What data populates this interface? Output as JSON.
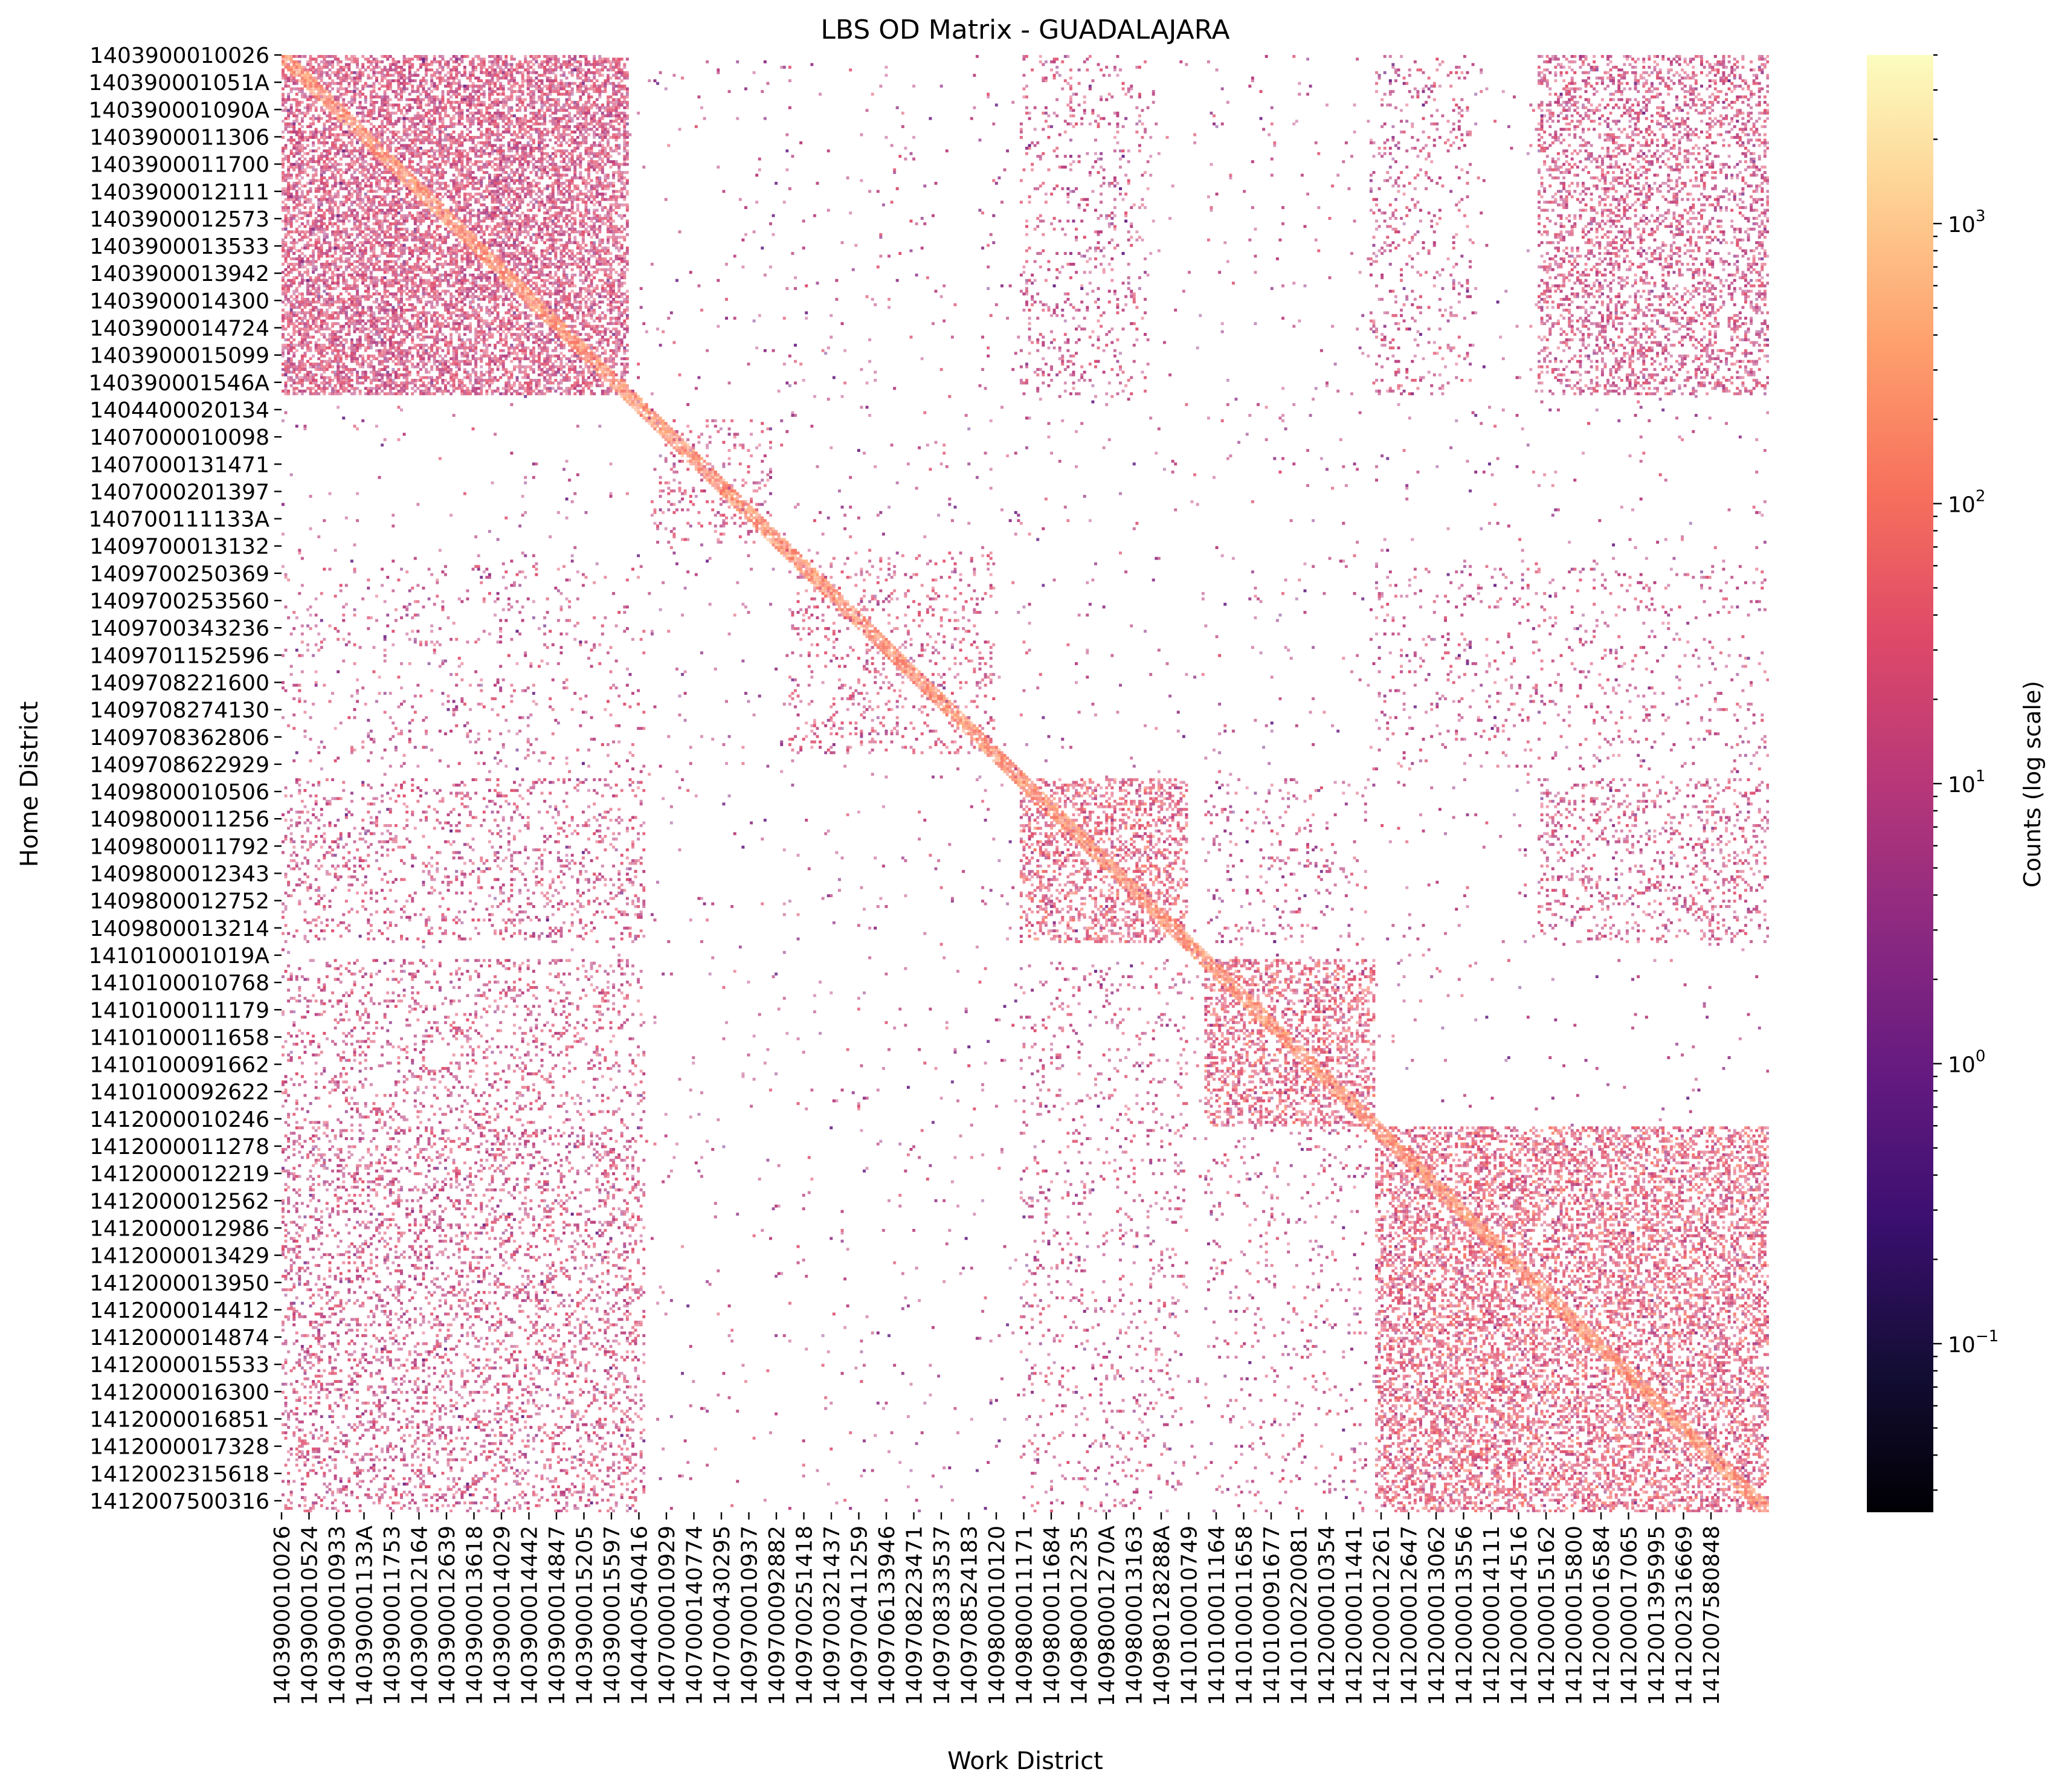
{
  "chart_data": {
    "type": "heatmap",
    "title": "LBS OD Matrix - GUADALAJARA",
    "xlabel": "Work District",
    "ylabel": "Home District",
    "colorbar_label": "Counts (log scale)",
    "colormap": "magma",
    "scale": "log",
    "colorbar_range": [
      0.025,
      4000
    ],
    "colorbar_ticks": [
      {
        "base": "10",
        "exp": "3",
        "value": 1000
      },
      {
        "base": "10",
        "exp": "2",
        "value": 100
      },
      {
        "base": "10",
        "exp": "1",
        "value": 10
      },
      {
        "base": "10",
        "exp": "0",
        "value": 1
      },
      {
        "base": "10",
        "exp": "−1",
        "value": 0.1
      }
    ],
    "grid": false,
    "row_tick_labels": [
      "1403900010026",
      "140390001051A",
      "140390001090A",
      "1403900011306",
      "1403900011700",
      "1403900012111",
      "1403900012573",
      "1403900013533",
      "1403900013942",
      "1403900014300",
      "1403900014724",
      "1403900015099",
      "140390001546A",
      "1404400020134",
      "1407000010098",
      "1407000131471",
      "1407000201397",
      "140700111133A",
      "1409700013132",
      "1409700250369",
      "1409700253560",
      "1409700343236",
      "1409701152596",
      "1409708221600",
      "1409708274130",
      "1409708362806",
      "1409708622929",
      "1409800010506",
      "1409800011256",
      "1409800011792",
      "1409800012343",
      "1409800012752",
      "1409800013214",
      "141010001019A",
      "1410100010768",
      "1410100011179",
      "1410100011658",
      "1410100091662",
      "1410100092622",
      "1412000010246",
      "1412000011278",
      "1412000012219",
      "1412000012562",
      "1412000012986",
      "1412000013429",
      "1412000013950",
      "1412000014412",
      "1412000014874",
      "1412000015533",
      "1412000016300",
      "1412000016851",
      "1412000017328",
      "1412002315618",
      "1412007500316"
    ],
    "col_tick_labels": [
      "1403900010026",
      "1403900010524",
      "1403900010933",
      "140390001133A",
      "1403900011753",
      "1403900012164",
      "1403900012639",
      "1403900013618",
      "1403900014029",
      "1403900014442",
      "1403900014847",
      "1403900015205",
      "1403900015597",
      "1404400540416",
      "1407000010929",
      "1407000140774",
      "1407000430295",
      "1409700010937",
      "1409700092882",
      "1409700251418",
      "1409700321437",
      "1409700411259",
      "1409706133946",
      "1409708223471",
      "1409708333537",
      "1409708524183",
      "1409800010120",
      "1409800011171",
      "1409800011684",
      "1409800012235",
      "140980001270A",
      "1409800013163",
      "140980128288A",
      "1410100010749",
      "1410100011164",
      "1410100011658",
      "1410100091677",
      "1410100220081",
      "1412000010354",
      "1412000011441",
      "1412000012261",
      "1412000012647",
      "1412000013062",
      "1412000013556",
      "1412000014111",
      "1412000014516",
      "1412000015162",
      "1412000015800",
      "1412000016584",
      "1412000017065",
      "1412001395995",
      "1412002316669",
      "1412007580848"
    ],
    "blocks": [
      {
        "row_range": [
          0,
          0.234
        ],
        "col_range": [
          0,
          0.234
        ],
        "density": 0.55,
        "level": 1.3
      },
      {
        "row_range": [
          0,
          0.234
        ],
        "col_range": [
          0.497,
          0.584
        ],
        "density": 0.1,
        "level": 1.1
      },
      {
        "row_range": [
          0,
          0.234
        ],
        "col_range": [
          0.732,
          0.8
        ],
        "density": 0.1,
        "level": 1.1
      },
      {
        "row_range": [
          0,
          0.234
        ],
        "col_range": [
          0.845,
          1.0
        ],
        "density": 0.28,
        "level": 1.2
      },
      {
        "row_range": [
          0.25,
          0.335
        ],
        "col_range": [
          0.25,
          0.33
        ],
        "density": 0.12,
        "level": 1.3
      },
      {
        "row_range": [
          0.34,
          0.48
        ],
        "col_range": [
          0.34,
          0.48
        ],
        "density": 0.12,
        "level": 1.3
      },
      {
        "row_range": [
          0.35,
          0.49
        ],
        "col_range": [
          0,
          0.245
        ],
        "density": 0.05,
        "level": 1.1
      },
      {
        "row_range": [
          0.35,
          0.49
        ],
        "col_range": [
          0.732,
          1.0
        ],
        "density": 0.06,
        "level": 1.1
      },
      {
        "row_range": [
          0.497,
          0.61
        ],
        "col_range": [
          0.497,
          0.61
        ],
        "density": 0.34,
        "level": 1.5
      },
      {
        "row_range": [
          0.497,
          0.61
        ],
        "col_range": [
          0,
          0.245
        ],
        "density": 0.14,
        "level": 1.2
      },
      {
        "row_range": [
          0.497,
          0.61
        ],
        "col_range": [
          0.845,
          1.0
        ],
        "density": 0.16,
        "level": 1.2
      },
      {
        "row_range": [
          0.497,
          0.61
        ],
        "col_range": [
          0.62,
          0.73
        ],
        "density": 0.06,
        "level": 1.1
      },
      {
        "row_range": [
          0.62,
          0.735
        ],
        "col_range": [
          0.62,
          0.735
        ],
        "density": 0.38,
        "level": 1.5
      },
      {
        "row_range": [
          0.62,
          0.735
        ],
        "col_range": [
          0,
          0.245
        ],
        "density": 0.14,
        "level": 1.2
      },
      {
        "row_range": [
          0.62,
          0.735
        ],
        "col_range": [
          0.497,
          0.61
        ],
        "density": 0.08,
        "level": 1.1
      },
      {
        "row_range": [
          0.735,
          1.0
        ],
        "col_range": [
          0.735,
          1.0
        ],
        "density": 0.4,
        "level": 1.5
      },
      {
        "row_range": [
          0.735,
          1.0
        ],
        "col_range": [
          0,
          0.245
        ],
        "density": 0.2,
        "level": 1.2
      },
      {
        "row_range": [
          0.735,
          1.0
        ],
        "col_range": [
          0.497,
          0.61
        ],
        "density": 0.06,
        "level": 1.1
      },
      {
        "row_range": [
          0.735,
          1.0
        ],
        "col_range": [
          0.62,
          0.73
        ],
        "density": 0.05,
        "level": 1.1
      }
    ],
    "background_density": 0.012,
    "diagonal": {
      "level": 2.2,
      "width": 0.006
    }
  }
}
